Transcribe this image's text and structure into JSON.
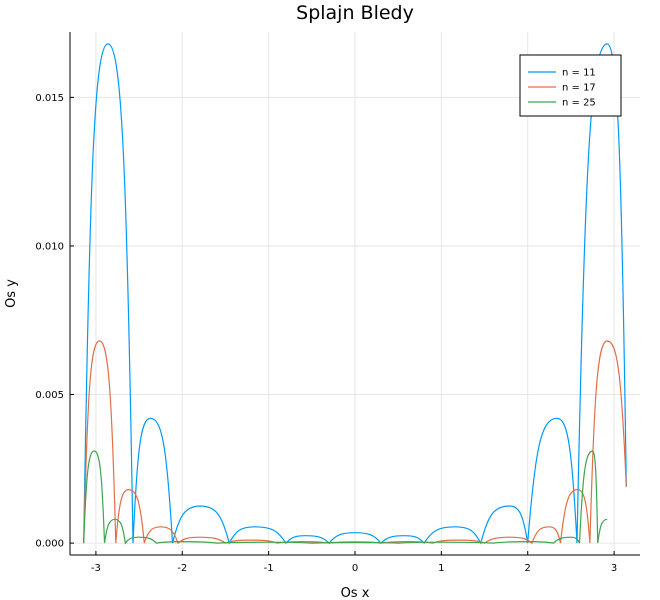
{
  "chart_data": {
    "type": "line",
    "title": "Splajn Bledy",
    "xlabel": "Os x",
    "ylabel": "Os y",
    "xlim": [
      -3.3,
      3.3
    ],
    "ylim": [
      -0.0004,
      0.0172
    ],
    "x_ticks": [
      -3,
      -2,
      -1,
      0,
      1,
      2,
      3
    ],
    "x_tick_labels": [
      "-3",
      "-2",
      "-1",
      "0",
      "1",
      "2",
      "3"
    ],
    "y_ticks": [
      0,
      0.005,
      0.01,
      0.015
    ],
    "y_tick_labels": [
      "0.000",
      "0.005",
      "0.010",
      "0.015"
    ],
    "grid": true,
    "legend_position": "top-right",
    "series": [
      {
        "name": "n = 11",
        "color": "#009af9",
        "x": [
          -3.1416,
          -2.86,
          -2.5704,
          -2.37,
          -2.1136,
          -1.79,
          -1.4568,
          -1.16,
          -0.8,
          -0.57,
          -0.3,
          0.0,
          0.3,
          0.57,
          0.8,
          1.16,
          1.4568,
          1.79,
          2.0,
          2.34,
          2.57,
          2.92,
          3.1416
        ],
        "y": [
          0.0,
          0.0168,
          0.0,
          0.0042,
          0.0,
          0.00125,
          0.0,
          0.00055,
          0.0,
          0.00025,
          0.0,
          0.00035,
          0.0,
          0.00025,
          0.0,
          0.00055,
          0.0,
          0.00125,
          0.0,
          0.0042,
          0.0,
          0.0168,
          0.0019
        ]
      },
      {
        "name": "n = 17",
        "color": "#e26f46",
        "x": [
          -3.1416,
          -2.96,
          -2.77,
          -2.62,
          -2.44,
          -2.25,
          -2.05,
          -1.8,
          -1.5,
          -1.2,
          -0.9,
          -0.6,
          -0.3,
          0.0,
          0.3,
          0.6,
          0.9,
          1.2,
          1.5,
          1.8,
          2.05,
          2.25,
          2.38,
          2.58,
          2.72,
          2.92,
          3.1416
        ],
        "y": [
          0.0,
          0.0068,
          0.0,
          0.0018,
          0.0,
          0.00055,
          0.0,
          0.0002,
          0.0,
          0.0001,
          0.0,
          5e-05,
          0.0,
          4e-05,
          0.0,
          5e-05,
          0.0,
          0.0001,
          0.0,
          0.0002,
          0.0,
          0.00055,
          0.0,
          0.0018,
          0.0,
          0.0068,
          0.0019
        ]
      },
      {
        "name": "n = 25",
        "color": "#3ea44e",
        "x": [
          -3.1416,
          -3.02,
          -2.9,
          -2.78,
          -2.66,
          -2.5,
          -2.3,
          -2.0,
          -1.6,
          -1.0,
          -0.5,
          0.0,
          0.5,
          1.0,
          1.6,
          2.0,
          2.3,
          2.5,
          2.6,
          2.75,
          2.81,
          2.92
        ],
        "y": [
          0.0,
          0.0031,
          0.0,
          0.0008,
          0.0,
          0.0002,
          0.0,
          5e-05,
          0.0,
          3e-05,
          0.0,
          2e-05,
          0.0,
          3e-05,
          0.0,
          5e-05,
          0.0,
          0.0002,
          0.0,
          0.0031,
          0.0,
          0.0008
        ]
      }
    ]
  }
}
